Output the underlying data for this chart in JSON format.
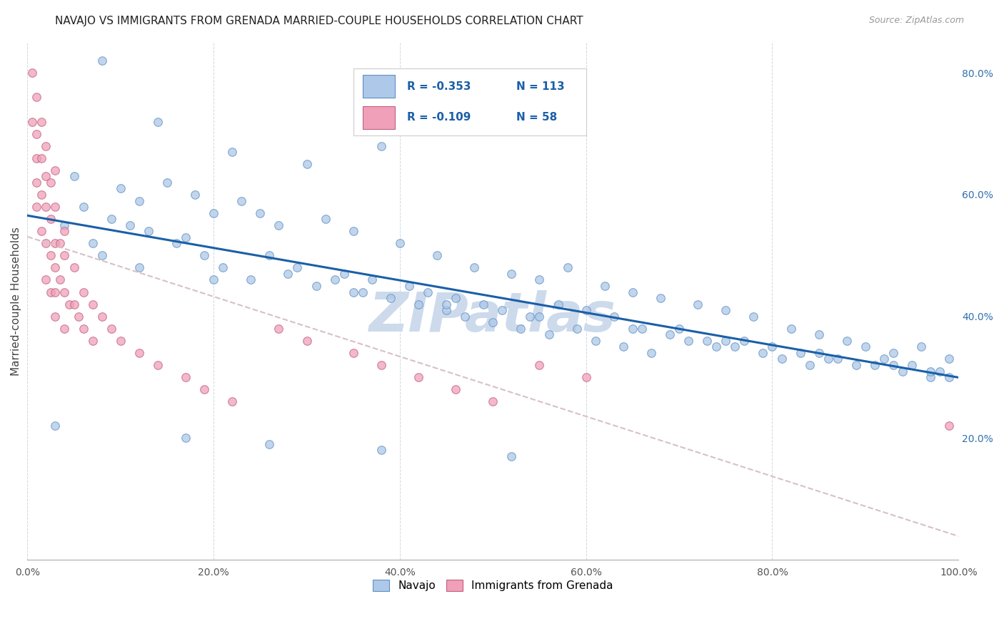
{
  "title": "NAVAJO VS IMMIGRANTS FROM GRENADA MARRIED-COUPLE HOUSEHOLDS CORRELATION CHART",
  "source": "Source: ZipAtlas.com",
  "ylabel": "Married-couple Households",
  "xlim": [
    0.0,
    1.0
  ],
  "ylim": [
    0.0,
    0.85
  ],
  "xticks": [
    0.0,
    0.2,
    0.4,
    0.6,
    0.8,
    1.0
  ],
  "xtick_labels": [
    "0.0%",
    "20.0%",
    "40.0%",
    "60.0%",
    "80.0%",
    "100.0%"
  ],
  "yticks_right": [
    0.2,
    0.4,
    0.6,
    0.8
  ],
  "ytick_labels_right": [
    "20.0%",
    "40.0%",
    "60.0%",
    "80.0%"
  ],
  "legend_blue_label": "Navajo",
  "legend_pink_label": "Immigrants from Grenada",
  "R_blue": "-0.353",
  "N_blue": "113",
  "R_pink": "-0.109",
  "N_pink": "58",
  "blue_color": "#adc8e8",
  "blue_edge": "#6090c0",
  "pink_color": "#f0a0b8",
  "pink_edge": "#c06080",
  "trendline_blue_color": "#1a5fa8",
  "trendline_pink_color": "#d8c0c8",
  "watermark_color": "#ccdaec",
  "background_color": "#ffffff",
  "navajo_x": [
    0.08,
    0.14,
    0.22,
    0.3,
    0.38,
    0.05,
    0.1,
    0.12,
    0.15,
    0.18,
    0.2,
    0.23,
    0.25,
    0.27,
    0.32,
    0.35,
    0.4,
    0.44,
    0.48,
    0.52,
    0.55,
    0.58,
    0.62,
    0.65,
    0.68,
    0.72,
    0.75,
    0.78,
    0.82,
    0.85,
    0.88,
    0.9,
    0.93,
    0.96,
    0.99,
    0.06,
    0.09,
    0.13,
    0.16,
    0.19,
    0.21,
    0.24,
    0.26,
    0.28,
    0.31,
    0.33,
    0.36,
    0.39,
    0.42,
    0.45,
    0.47,
    0.5,
    0.53,
    0.56,
    0.59,
    0.61,
    0.64,
    0.67,
    0.7,
    0.73,
    0.76,
    0.79,
    0.81,
    0.84,
    0.87,
    0.91,
    0.94,
    0.97,
    0.07,
    0.11,
    0.17,
    0.29,
    0.34,
    0.37,
    0.41,
    0.43,
    0.46,
    0.49,
    0.51,
    0.54,
    0.57,
    0.6,
    0.63,
    0.66,
    0.69,
    0.71,
    0.74,
    0.77,
    0.8,
    0.83,
    0.86,
    0.89,
    0.92,
    0.95,
    0.98,
    0.04,
    0.08,
    0.12,
    0.2,
    0.35,
    0.45,
    0.55,
    0.65,
    0.75,
    0.85,
    0.93,
    0.97,
    0.99,
    0.03,
    0.17,
    0.26,
    0.38,
    0.52
  ],
  "navajo_y": [
    0.82,
    0.72,
    0.67,
    0.65,
    0.68,
    0.63,
    0.61,
    0.59,
    0.62,
    0.6,
    0.57,
    0.59,
    0.57,
    0.55,
    0.56,
    0.54,
    0.52,
    0.5,
    0.48,
    0.47,
    0.46,
    0.48,
    0.45,
    0.44,
    0.43,
    0.42,
    0.41,
    0.4,
    0.38,
    0.37,
    0.36,
    0.35,
    0.34,
    0.35,
    0.33,
    0.58,
    0.56,
    0.54,
    0.52,
    0.5,
    0.48,
    0.46,
    0.5,
    0.47,
    0.45,
    0.46,
    0.44,
    0.43,
    0.42,
    0.41,
    0.4,
    0.39,
    0.38,
    0.37,
    0.38,
    0.36,
    0.35,
    0.34,
    0.38,
    0.36,
    0.35,
    0.34,
    0.33,
    0.32,
    0.33,
    0.32,
    0.31,
    0.3,
    0.52,
    0.55,
    0.53,
    0.48,
    0.47,
    0.46,
    0.45,
    0.44,
    0.43,
    0.42,
    0.41,
    0.4,
    0.42,
    0.41,
    0.4,
    0.38,
    0.37,
    0.36,
    0.35,
    0.36,
    0.35,
    0.34,
    0.33,
    0.32,
    0.33,
    0.32,
    0.31,
    0.55,
    0.5,
    0.48,
    0.46,
    0.44,
    0.42,
    0.4,
    0.38,
    0.36,
    0.34,
    0.32,
    0.31,
    0.3,
    0.22,
    0.2,
    0.19,
    0.18,
    0.17
  ],
  "grenada_x": [
    0.005,
    0.005,
    0.01,
    0.01,
    0.01,
    0.01,
    0.01,
    0.015,
    0.015,
    0.015,
    0.015,
    0.02,
    0.02,
    0.02,
    0.02,
    0.02,
    0.025,
    0.025,
    0.025,
    0.025,
    0.03,
    0.03,
    0.03,
    0.03,
    0.03,
    0.03,
    0.035,
    0.035,
    0.04,
    0.04,
    0.04,
    0.04,
    0.045,
    0.05,
    0.05,
    0.055,
    0.06,
    0.06,
    0.07,
    0.07,
    0.08,
    0.09,
    0.1,
    0.12,
    0.14,
    0.17,
    0.19,
    0.22,
    0.27,
    0.3,
    0.35,
    0.38,
    0.42,
    0.46,
    0.5,
    0.55,
    0.6,
    0.99
  ],
  "grenada_y": [
    0.8,
    0.72,
    0.76,
    0.7,
    0.66,
    0.62,
    0.58,
    0.72,
    0.66,
    0.6,
    0.54,
    0.68,
    0.63,
    0.58,
    0.52,
    0.46,
    0.62,
    0.56,
    0.5,
    0.44,
    0.64,
    0.58,
    0.52,
    0.48,
    0.44,
    0.4,
    0.52,
    0.46,
    0.54,
    0.5,
    0.44,
    0.38,
    0.42,
    0.48,
    0.42,
    0.4,
    0.44,
    0.38,
    0.42,
    0.36,
    0.4,
    0.38,
    0.36,
    0.34,
    0.32,
    0.3,
    0.28,
    0.26,
    0.38,
    0.36,
    0.34,
    0.32,
    0.3,
    0.28,
    0.26,
    0.32,
    0.3,
    0.22
  ]
}
